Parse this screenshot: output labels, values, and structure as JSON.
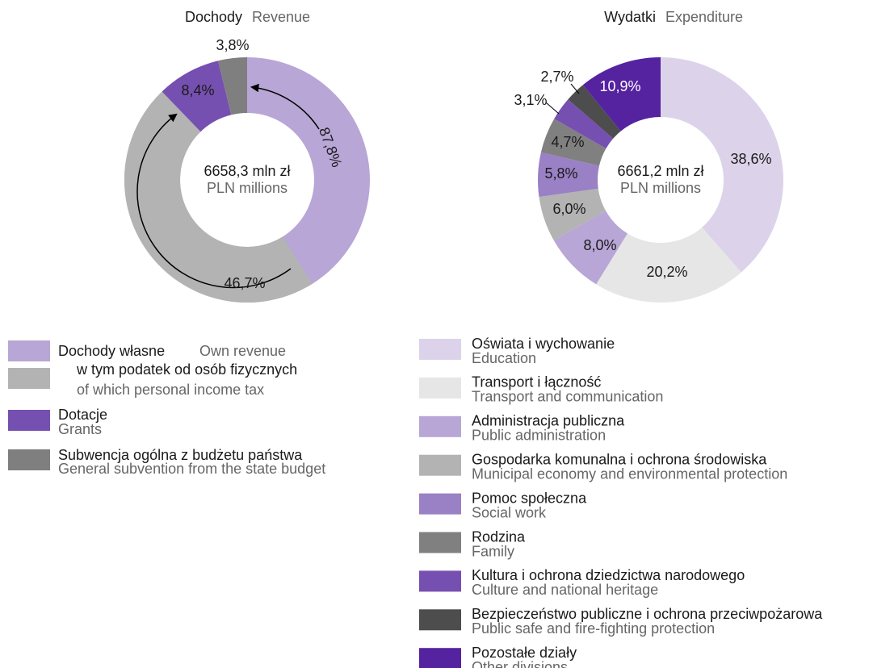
{
  "chart_data": [
    {
      "type": "donut",
      "title": "Dochody",
      "title_en": "Revenue",
      "center_value": "6658,3 mln zł",
      "center_unit": "PLN millions",
      "categories": [
        "Dochody własne",
        "Dotacje",
        "Subwencja ogólna z budżetu państwa"
      ],
      "categories_en": [
        "Own revenue",
        "Grants",
        "General subvention from the state budget"
      ],
      "values": [
        87.8,
        8.4,
        3.8
      ],
      "value_labels": [
        "87,8%",
        "8,4%",
        "3,8%"
      ],
      "colors": [
        "#b8a6d6",
        "#7650b0",
        "#7f7f7f"
      ],
      "subset": {
        "name": "w tym podatek od osób fizycznych",
        "name_en": "of which personal income tax",
        "value": 46.7,
        "value_label": "46,7%",
        "color": "#b3b3b3"
      }
    },
    {
      "type": "donut",
      "title": "Wydatki",
      "title_en": "Expenditure",
      "center_value": "6661,2 mln zł",
      "center_unit": "PLN millions",
      "categories": [
        "Oświata i wychowanie",
        "Transport i łączność",
        "Administracja publiczna",
        "Gospodarka komunalna i ochrona środowiska",
        "Pomoc społeczna",
        "Rodzina",
        "Kultura i ochrona dziedzictwa narodowego",
        "Bezpieczeństwo publiczne i ochrona przeciwpożarowa",
        "Pozostałe działy"
      ],
      "categories_en": [
        "Education",
        "Transport and communication",
        "Public administration",
        "Municipal economy and environmental protection",
        "Social work",
        "Family",
        "Culture and national heritage",
        "Public safe and fire-fighting protection",
        "Other divisions"
      ],
      "values": [
        38.6,
        20.2,
        8.0,
        6.0,
        5.8,
        4.7,
        3.1,
        2.7,
        10.9
      ],
      "value_labels": [
        "38,6%",
        "20,2%",
        "8,0%",
        "6,0%",
        "5,8%",
        "4,7%",
        "3,1%",
        "2,7%",
        "10,9%"
      ],
      "colors": [
        "#dcd3ea",
        "#e6e6e6",
        "#b8a6d6",
        "#b3b3b3",
        "#9a80c4",
        "#808080",
        "#7650b0",
        "#4d4d4d",
        "#5522a0"
      ]
    }
  ]
}
